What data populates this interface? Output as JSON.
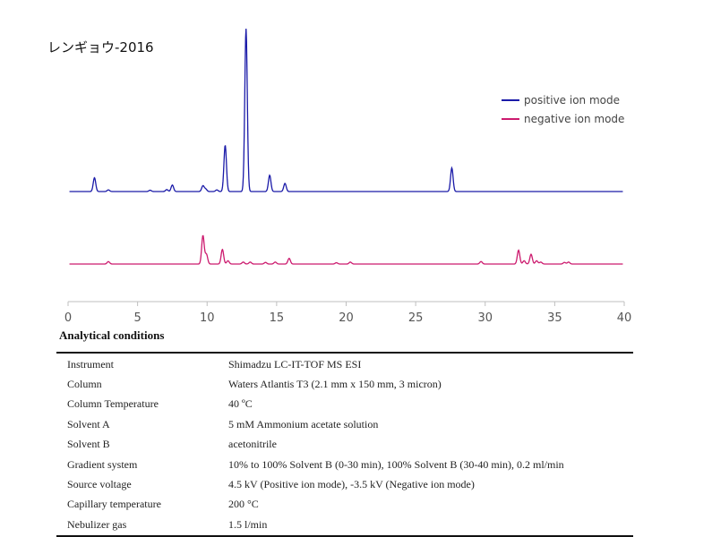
{
  "title": "レンギョウ-2016",
  "section_title": "Analytical conditions",
  "colors": {
    "positive": "#1a1aa8",
    "negative": "#cc1a6e"
  },
  "chart_data": {
    "type": "line",
    "title": "レンギョウ-2016",
    "xlabel": "",
    "ylabel": "",
    "xlim": [
      0,
      40
    ],
    "x_ticks": [
      0,
      5,
      10,
      15,
      20,
      25,
      30,
      35,
      40
    ],
    "grid": false,
    "legend_position": "top-right",
    "series": [
      {
        "name": "positive ion mode",
        "color": "#1a1aa8",
        "peaks": [
          {
            "x": 1.9,
            "h": 0.085
          },
          {
            "x": 2.9,
            "h": 0.01
          },
          {
            "x": 5.9,
            "h": 0.008
          },
          {
            "x": 7.1,
            "h": 0.012
          },
          {
            "x": 7.5,
            "h": 0.04
          },
          {
            "x": 9.7,
            "h": 0.035
          },
          {
            "x": 9.9,
            "h": 0.015
          },
          {
            "x": 10.7,
            "h": 0.01
          },
          {
            "x": 11.3,
            "h": 0.285
          },
          {
            "x": 12.8,
            "h": 1.0
          },
          {
            "x": 14.5,
            "h": 0.1
          },
          {
            "x": 15.6,
            "h": 0.05
          },
          {
            "x": 27.6,
            "h": 0.145
          }
        ]
      },
      {
        "name": "negative ion mode",
        "color": "#cc1a6e",
        "peaks": [
          {
            "x": 2.9,
            "h": 0.015
          },
          {
            "x": 9.7,
            "h": 0.175
          },
          {
            "x": 9.95,
            "h": 0.06
          },
          {
            "x": 11.1,
            "h": 0.09
          },
          {
            "x": 11.5,
            "h": 0.02
          },
          {
            "x": 12.6,
            "h": 0.012
          },
          {
            "x": 13.1,
            "h": 0.012
          },
          {
            "x": 14.2,
            "h": 0.01
          },
          {
            "x": 14.9,
            "h": 0.012
          },
          {
            "x": 15.9,
            "h": 0.035
          },
          {
            "x": 19.3,
            "h": 0.008
          },
          {
            "x": 20.3,
            "h": 0.012
          },
          {
            "x": 29.7,
            "h": 0.015
          },
          {
            "x": 32.4,
            "h": 0.085
          },
          {
            "x": 32.8,
            "h": 0.02
          },
          {
            "x": 33.3,
            "h": 0.06
          },
          {
            "x": 33.7,
            "h": 0.02
          },
          {
            "x": 34.0,
            "h": 0.012
          },
          {
            "x": 35.7,
            "h": 0.01
          },
          {
            "x": 36.0,
            "h": 0.012
          }
        ]
      }
    ]
  },
  "conditions": [
    {
      "label": "Instrument",
      "value": "Shimadzu LC-IT-TOF MS ESI"
    },
    {
      "label": "Column",
      "value": "Waters Atlantis T3 (2.1 mm x 150 mm, 3 micron)"
    },
    {
      "label": "Column Temperature",
      "value": "40 ºC"
    },
    {
      "label": "Solvent A",
      "value": "5 mM Ammonium acetate solution"
    },
    {
      "label": "Solvent B",
      "value": "acetonitrile"
    },
    {
      "label": "Gradient system",
      "value": "10% to 100% Solvent B (0-30 min), 100% Solvent B (30-40 min), 0.2 ml/min"
    },
    {
      "label": "Source voltage",
      "value": "4.5 kV (Positive ion mode), -3.5 kV (Negative ion mode)"
    },
    {
      "label": "Capillary temperature",
      "value": "200 °C"
    },
    {
      "label": "Nebulizer gas",
      "value": "1.5 l/min"
    }
  ]
}
